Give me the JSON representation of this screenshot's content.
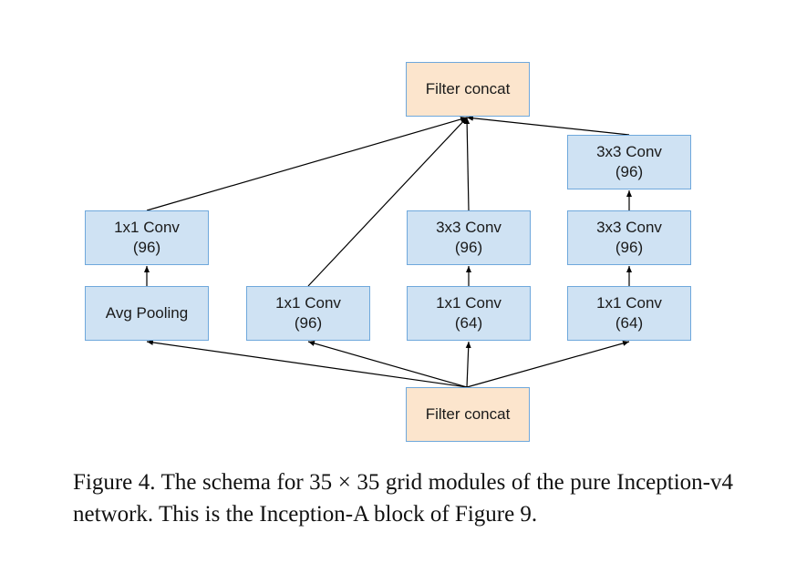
{
  "diagram": {
    "nodes": {
      "top_concat": {
        "lines": [
          "Filter concat"
        ]
      },
      "b1_avgpool": {
        "lines": [
          "Avg Pooling"
        ]
      },
      "b1_conv": {
        "lines": [
          "1x1 Conv",
          "(96)"
        ]
      },
      "b2_conv": {
        "lines": [
          "1x1 Conv",
          "(96)"
        ]
      },
      "b3_conv1": {
        "lines": [
          "1x1 Conv",
          "(64)"
        ]
      },
      "b3_conv2": {
        "lines": [
          "3x3 Conv",
          "(96)"
        ]
      },
      "b4_conv1": {
        "lines": [
          "1x1 Conv",
          "(64)"
        ]
      },
      "b4_conv2": {
        "lines": [
          "3x3 Conv",
          "(96)"
        ]
      },
      "b4_conv3": {
        "lines": [
          "3x3 Conv",
          "(96)"
        ]
      },
      "bottom_concat": {
        "lines": [
          "Filter concat"
        ]
      }
    },
    "edges": [
      [
        "bottom_concat",
        "b1_avgpool"
      ],
      [
        "bottom_concat",
        "b2_conv"
      ],
      [
        "bottom_concat",
        "b3_conv1"
      ],
      [
        "bottom_concat",
        "b4_conv1"
      ],
      [
        "b1_avgpool",
        "b1_conv"
      ],
      [
        "b3_conv1",
        "b3_conv2"
      ],
      [
        "b4_conv1",
        "b4_conv2"
      ],
      [
        "b4_conv2",
        "b4_conv3"
      ],
      [
        "b1_conv",
        "top_concat"
      ],
      [
        "b2_conv",
        "top_concat"
      ],
      [
        "b3_conv2",
        "top_concat"
      ],
      [
        "b4_conv3",
        "top_concat"
      ]
    ],
    "colors": {
      "conv_fill": "#cfe2f3",
      "concat_fill": "#fce5cd",
      "border": "#6fa8dc",
      "edge": "#000000"
    }
  },
  "caption": {
    "text": "Figure 4. The schema for 35 × 35 grid modules of the pure Inception-v4 network. This is the Inception-A block of Figure 9."
  }
}
